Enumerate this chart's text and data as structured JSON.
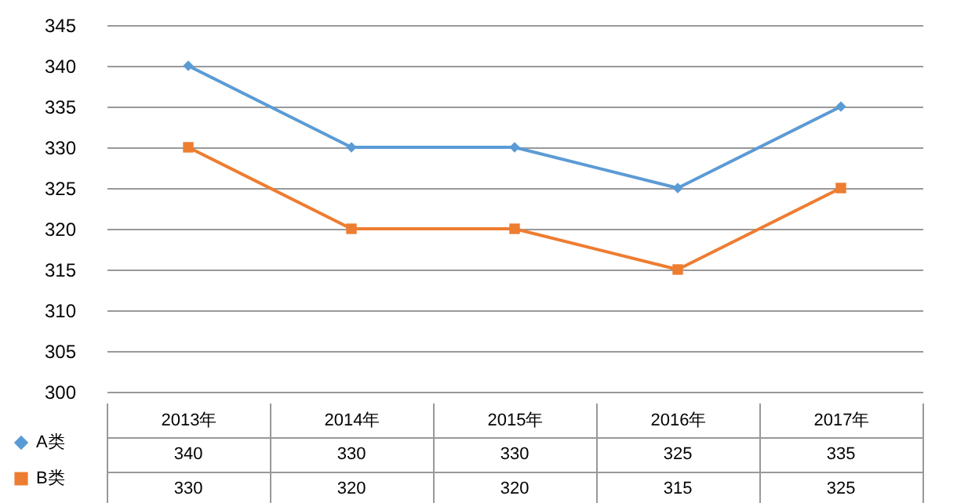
{
  "chart_data": {
    "type": "line",
    "categories": [
      "2013年",
      "2014年",
      "2015年",
      "2016年",
      "2017年"
    ],
    "series": [
      {
        "name": "A类",
        "color": "#5b9bd5",
        "marker": "diamond",
        "values": [
          340,
          330,
          330,
          325,
          335
        ]
      },
      {
        "name": "B类",
        "color": "#ed7d31",
        "marker": "square",
        "values": [
          330,
          320,
          320,
          315,
          325
        ]
      }
    ],
    "ylim": [
      300,
      345
    ],
    "yticks": [
      300,
      305,
      310,
      315,
      320,
      325,
      330,
      335,
      340,
      345
    ],
    "grid": "y",
    "legend": "bottom left",
    "data_labels": true
  }
}
